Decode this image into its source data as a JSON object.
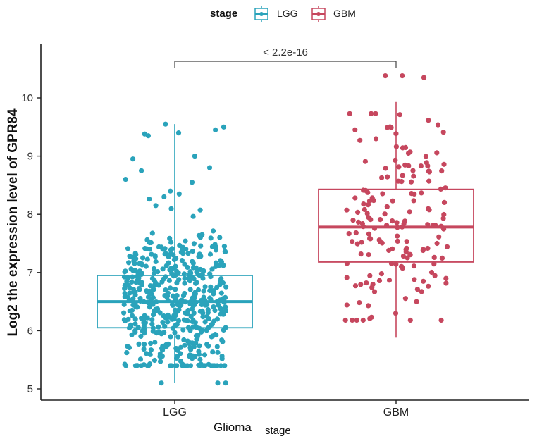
{
  "chart_data": {
    "type": "boxplot",
    "legend": {
      "title": "stage",
      "position": "top",
      "entries": [
        "LGG",
        "GBM"
      ]
    },
    "colors": {
      "LGG": "#2aa3bb",
      "GBM": "#c6475e"
    },
    "categories": [
      "LGG",
      "GBM"
    ],
    "xlabel": "Glioma",
    "xlabel_sub": "stage",
    "ylabel": "Log2 the expression  level of GPR84",
    "ylim": [
      4.8,
      10.9
    ],
    "yticks": [
      5,
      6,
      7,
      8,
      9,
      10
    ],
    "grid": false,
    "significance": {
      "label": "< 2.2e-16",
      "between": [
        "LGG",
        "GBM"
      ],
      "y": 10.65
    },
    "series": [
      {
        "name": "LGG",
        "box": {
          "q1": 6.05,
          "median": 6.5,
          "q3": 6.95,
          "whisker_low": 5.1,
          "whisker_high": 9.55
        },
        "n_points": 510,
        "outliers_high": [
          9.4,
          9.55,
          9.5,
          9.35,
          9.45,
          9.38,
          9.0,
          8.95,
          8.8,
          8.75,
          8.6,
          8.55,
          8.4,
          8.3
        ],
        "outliers_low": [
          5.1,
          5.1,
          5.1
        ]
      },
      {
        "name": "GBM",
        "box": {
          "q1": 7.18,
          "median": 7.78,
          "q3": 8.43,
          "whisker_low": 5.88,
          "whisker_high": 9.93
        },
        "n_points": 170,
        "outliers_high": [
          10.38,
          10.35,
          10.38
        ],
        "outliers_low": []
      }
    ]
  }
}
